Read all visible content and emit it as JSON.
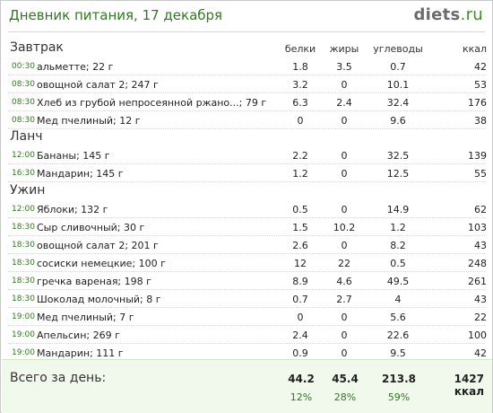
{
  "header": {
    "title": "Дневник питания, 17 декабря",
    "logo_main": "diets",
    "logo_tld": ".ru"
  },
  "columns": {
    "protein": "белки",
    "fat": "жиры",
    "carbs": "углеводы",
    "kcal": "ккал"
  },
  "sections": [
    {
      "name": "Завтрак",
      "rows": [
        {
          "time": "00:30",
          "food": "альметте; 22 г",
          "protein": "1.8",
          "fat": "3.5",
          "carbs": "0.7",
          "kcal": "42"
        },
        {
          "time": "08:30",
          "food": "овощной салат 2; 247 г",
          "protein": "3.2",
          "fat": "0",
          "carbs": "10.1",
          "kcal": "53"
        },
        {
          "time": "08:30",
          "food": "Хлеб из грубой непросеянной ржано...; 79 г",
          "protein": "6.3",
          "fat": "2.4",
          "carbs": "32.4",
          "kcal": "176"
        },
        {
          "time": "08:30",
          "food": "Мед пчелиный; 12 г",
          "protein": "0",
          "fat": "0",
          "carbs": "9.6",
          "kcal": "38"
        }
      ]
    },
    {
      "name": "Ланч",
      "rows": [
        {
          "time": "12:00",
          "food": "Бананы; 145 г",
          "protein": "2.2",
          "fat": "0",
          "carbs": "32.5",
          "kcal": "139"
        },
        {
          "time": "16:30",
          "food": "Мандарин; 145 г",
          "protein": "1.2",
          "fat": "0",
          "carbs": "12.5",
          "kcal": "55"
        }
      ]
    },
    {
      "name": "Ужин",
      "rows": [
        {
          "time": "12:00",
          "food": "Яблоки; 132 г",
          "protein": "0.5",
          "fat": "0",
          "carbs": "14.9",
          "kcal": "62"
        },
        {
          "time": "18:30",
          "food": "Сыр сливочный; 30 г",
          "protein": "1.5",
          "fat": "10.2",
          "carbs": "1.2",
          "kcal": "103"
        },
        {
          "time": "18:30",
          "food": "овощной салат 2; 201 г",
          "protein": "2.6",
          "fat": "0",
          "carbs": "8.2",
          "kcal": "43"
        },
        {
          "time": "18:30",
          "food": "сосиски немецкие; 100 г",
          "protein": "12",
          "fat": "22",
          "carbs": "0.5",
          "kcal": "248"
        },
        {
          "time": "18:30",
          "food": "гречка вареная; 198 г",
          "protein": "8.9",
          "fat": "4.6",
          "carbs": "49.5",
          "kcal": "261"
        },
        {
          "time": "18:30",
          "food": "Шоколад молочный; 8 г",
          "protein": "0.7",
          "fat": "2.7",
          "carbs": "4",
          "kcal": "43"
        },
        {
          "time": "19:00",
          "food": "Мед пчелиный; 7 г",
          "protein": "0",
          "fat": "0",
          "carbs": "5.6",
          "kcal": "22"
        },
        {
          "time": "19:00",
          "food": "Апельсин; 269 г",
          "protein": "2.4",
          "fat": "0",
          "carbs": "22.6",
          "kcal": "100"
        },
        {
          "time": "19:00",
          "food": "Мандарин; 111 г",
          "protein": "0.9",
          "fat": "0",
          "carbs": "9.5",
          "kcal": "42"
        }
      ]
    }
  ],
  "totals": {
    "label": "Всего за день:",
    "protein": "44.2",
    "fat": "45.4",
    "carbs": "213.8",
    "kcal": "1427 ккал",
    "protein_pct": "12%",
    "fat_pct": "28%",
    "carbs_pct": "59%"
  },
  "colors": {
    "accent": "#2f7a1f",
    "total_bg": "#f0f9ec"
  }
}
